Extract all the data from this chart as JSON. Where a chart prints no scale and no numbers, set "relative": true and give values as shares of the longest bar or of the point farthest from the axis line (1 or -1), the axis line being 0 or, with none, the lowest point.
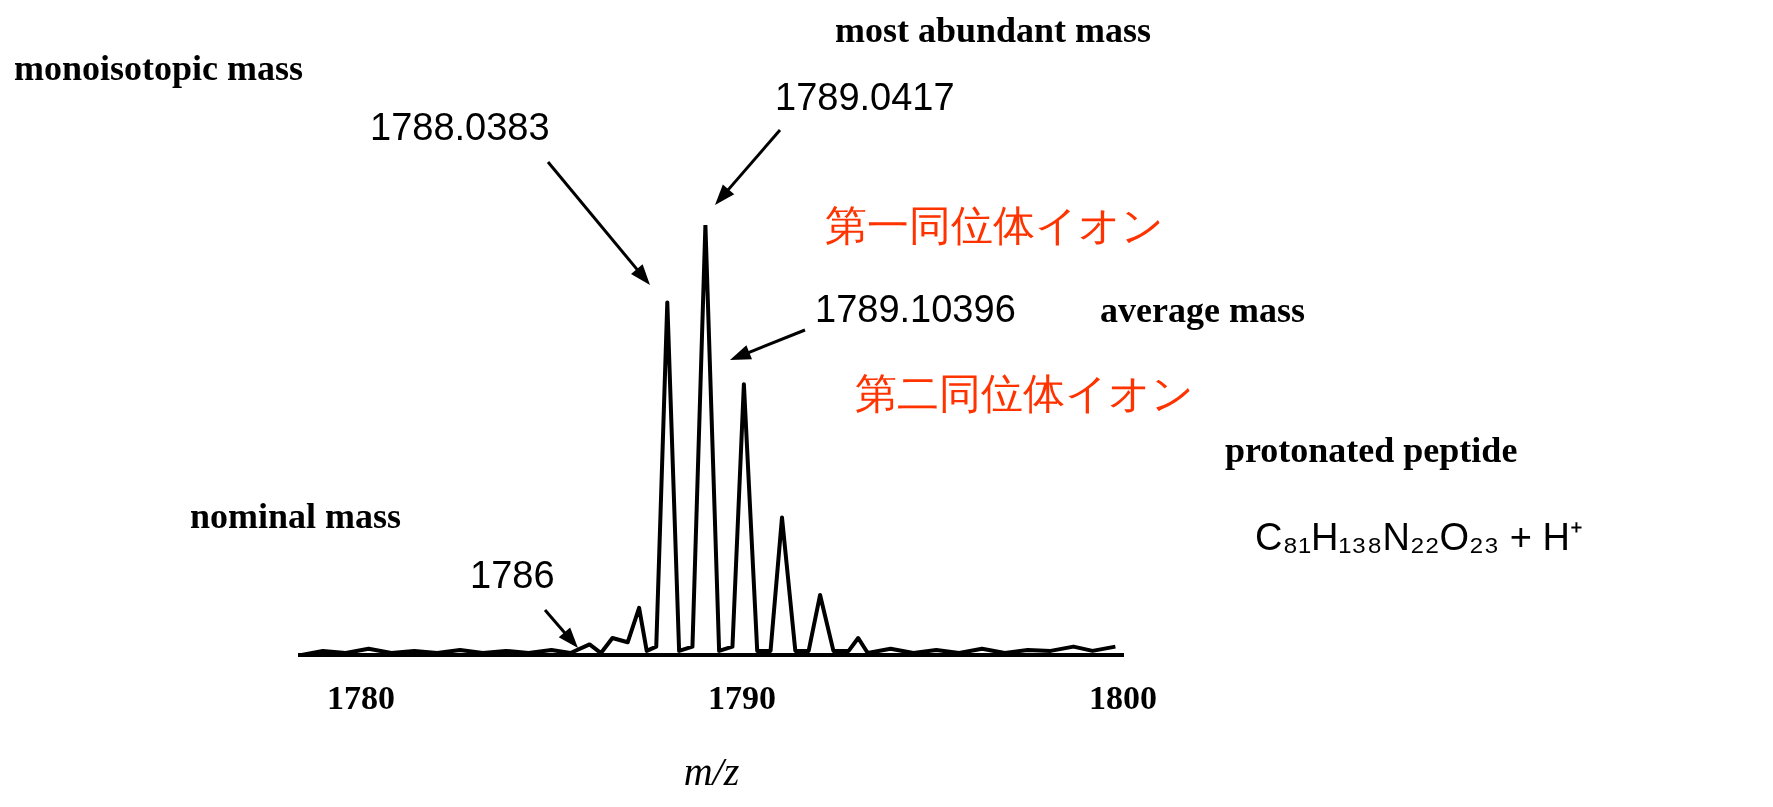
{
  "chart_data": {
    "type": "line",
    "relative": true,
    "xlabel": "m/z",
    "xlim": [
      1778.4,
      1800
    ],
    "xticks": [
      1780,
      1790,
      1800
    ],
    "series": [
      {
        "color": "#000000",
        "x": [
          1778.4,
          1779,
          1779.6,
          1780.2,
          1780.8,
          1781.4,
          1782,
          1782.6,
          1783.2,
          1783.8,
          1784.4,
          1785,
          1785.5,
          1786,
          1786.3,
          1786.6,
          1787,
          1787.3,
          1787.5,
          1787.75,
          1788.04,
          1788.35,
          1788.7,
          1789.04,
          1789.4,
          1789.75,
          1790.05,
          1790.4,
          1790.75,
          1791.05,
          1791.4,
          1791.75,
          1792.05,
          1792.4,
          1792.8,
          1793.05,
          1793.3,
          1793.9,
          1794.5,
          1795.1,
          1795.7,
          1796.3,
          1796.9,
          1797.5,
          1798.1,
          1798.7,
          1799.2,
          1799.8
        ],
        "values": [
          0,
          0.01,
          0.005,
          0.015,
          0.005,
          0.01,
          0.005,
          0.012,
          0.005,
          0.01,
          0.005,
          0.012,
          0.005,
          0.025,
          0.005,
          0.04,
          0.03,
          0.11,
          0.01,
          0.02,
          0.82,
          0.01,
          0.02,
          1,
          0.01,
          0.02,
          0.63,
          0.01,
          0.01,
          0.32,
          0.01,
          0.01,
          0.14,
          0.01,
          0.01,
          0.04,
          0.005,
          0.015,
          0.005,
          0.012,
          0.005,
          0.015,
          0.005,
          0.012,
          0.01,
          0.02,
          0.01,
          0.02
        ]
      }
    ],
    "annotations": [
      "monoisotopic mass",
      "1788.0383",
      "most abundant mass",
      "1789.0417",
      "average mass",
      "1789.10396",
      "第一同位体イオン",
      "第二同位体イオン",
      "nominal mass",
      "1786",
      "protonated peptide",
      "C₈₁H₁₃₈N₂₂O₂₃ + H⁺"
    ]
  }
}
